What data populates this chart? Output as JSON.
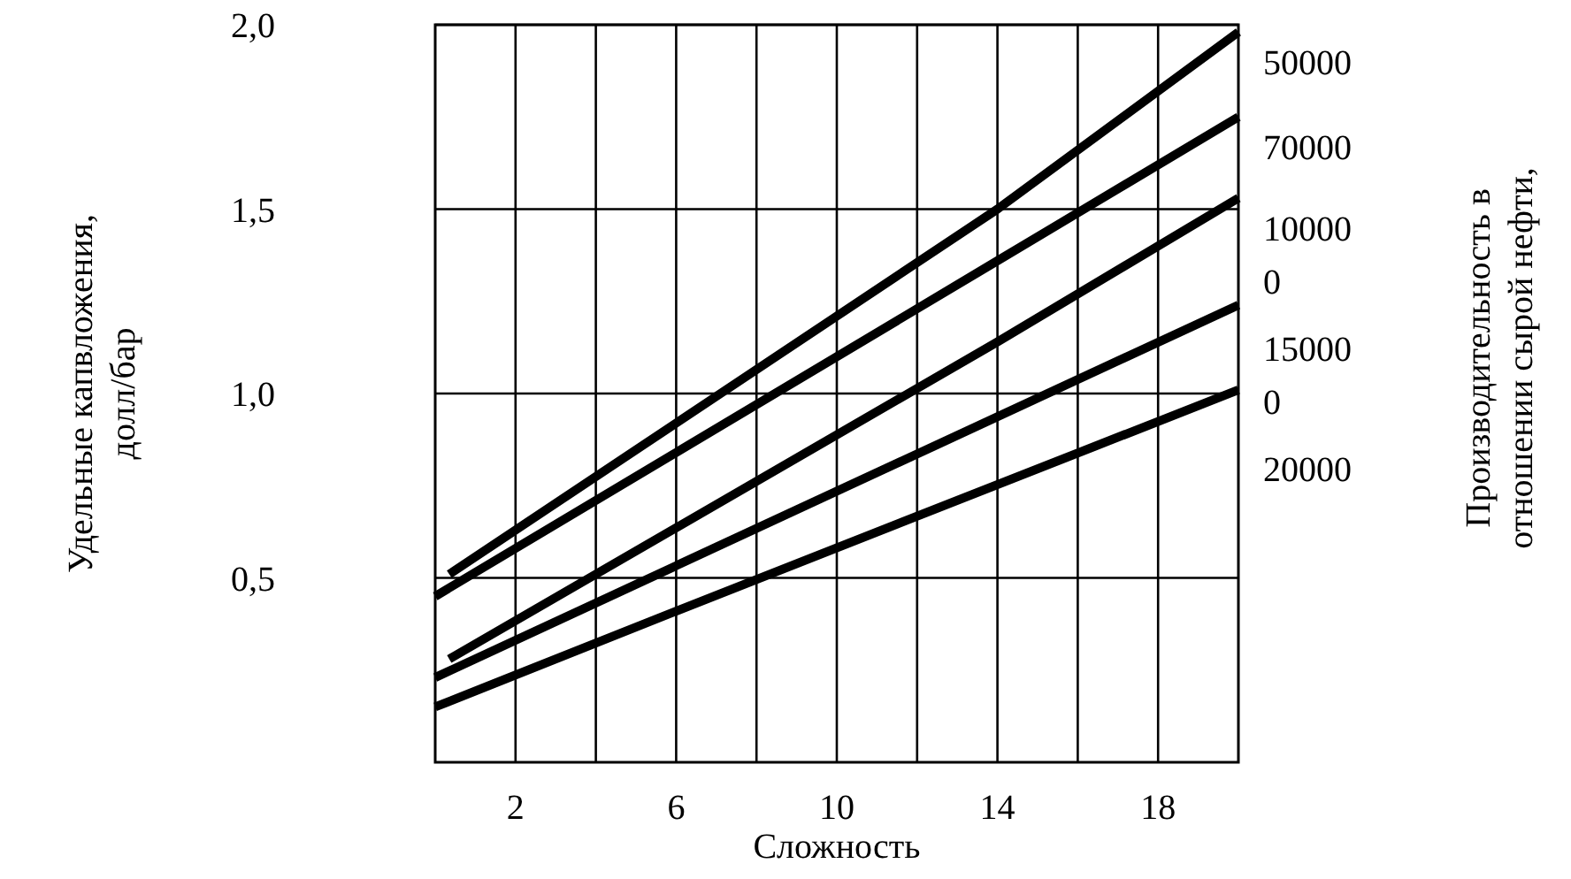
{
  "chart_data": {
    "type": "line",
    "xlabel": "Сложность",
    "ylabel": "Удельные капвложения,\nдолл/бар",
    "annotations": [
      "Производительность в\nотношении сырой нефти,"
    ],
    "xlim": [
      0,
      20
    ],
    "xticks": [
      {
        "value": 2,
        "label": "2"
      },
      {
        "value": 4,
        "label": null
      },
      {
        "value": 6,
        "label": "6"
      },
      {
        "value": 8,
        "label": null
      },
      {
        "value": 10,
        "label": "10"
      },
      {
        "value": 12,
        "label": null
      },
      {
        "value": 14,
        "label": "14"
      },
      {
        "value": 16,
        "label": null
      },
      {
        "value": 18,
        "label": "18"
      }
    ],
    "ylim": [
      0,
      2
    ],
    "yticks": [
      {
        "value": 0.5,
        "label": "0,5"
      },
      {
        "value": 1,
        "label": "1,0"
      },
      {
        "value": 1.5,
        "label": "1,5"
      },
      {
        "value": 2,
        "label": "2,0"
      }
    ],
    "grid": true,
    "line_style": "solid",
    "marker": "none",
    "series": [
      {
        "name": "50000",
        "color": "#000000",
        "x": [
          0.35,
          14,
          20
        ],
        "values": [
          0.51,
          1.5,
          1.98
        ]
      },
      {
        "name": "70000",
        "color": "#000000",
        "x": [
          0,
          14,
          20
        ],
        "values": [
          0.45,
          1.36,
          1.75
        ]
      },
      {
        "name": "100000",
        "color": "#000000",
        "x": [
          0.35,
          14,
          20
        ],
        "values": [
          0.28,
          1.14,
          1.53
        ]
      },
      {
        "name": "150000",
        "color": "#000000",
        "x": [
          0,
          20
        ],
        "values": [
          0.23,
          1.24
        ]
      },
      {
        "name": "20000",
        "color": "#000000",
        "x": [
          0,
          6,
          20
        ],
        "values": [
          0.15,
          0.41,
          1.01
        ]
      }
    ]
  }
}
